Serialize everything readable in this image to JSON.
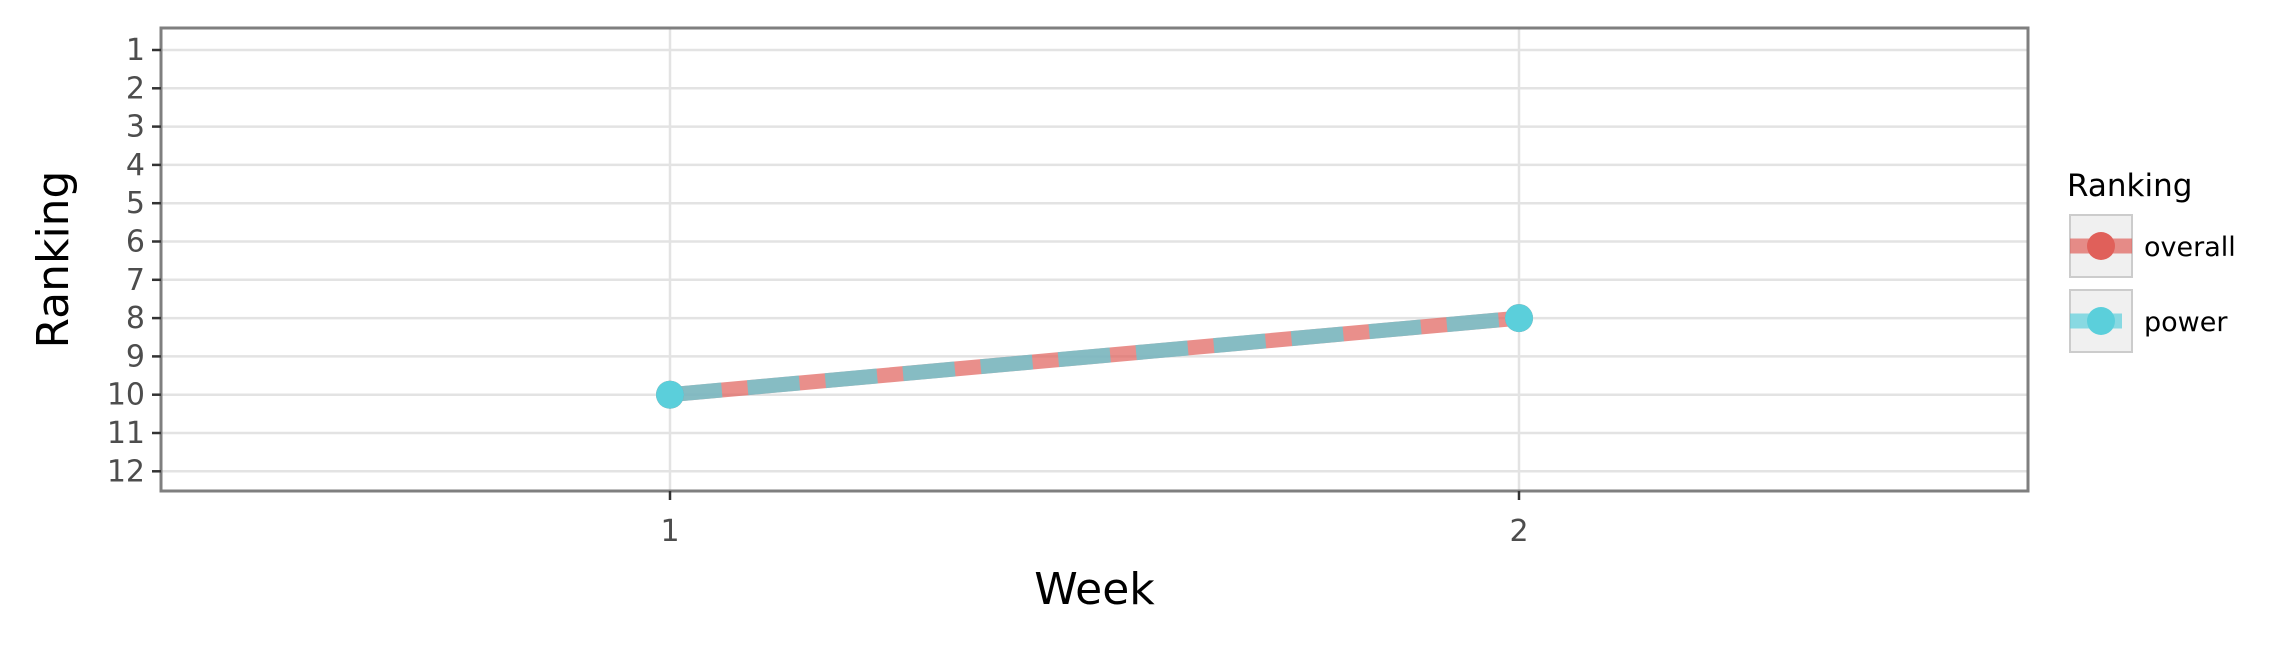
{
  "chart_data": {
    "type": "line",
    "title": "",
    "xlabel": "Week",
    "ylabel": "Ranking",
    "x": [
      1,
      2
    ],
    "xlim": [
      0.4,
      2.6
    ],
    "x_ticks": [
      "1",
      "2"
    ],
    "ylim": [
      12.5,
      0.5
    ],
    "y_reversed": true,
    "y_ticks": [
      "1",
      "2",
      "3",
      "4",
      "5",
      "6",
      "7",
      "8",
      "9",
      "10",
      "11",
      "12"
    ],
    "grid": true,
    "series": [
      {
        "name": "overall",
        "values": [
          10,
          8
        ],
        "color": "#E0605A",
        "linestyle": "solid"
      },
      {
        "name": "power",
        "values": [
          10,
          8
        ],
        "color": "#5BCFDB",
        "linestyle": "dashed"
      }
    ],
    "legend": {
      "title": "Ranking",
      "position": "right",
      "items": [
        "overall",
        "power"
      ]
    }
  }
}
